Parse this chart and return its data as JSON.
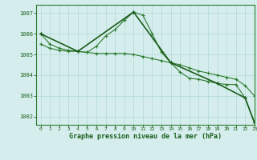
{
  "series1": {
    "x": [
      0,
      1,
      2,
      3,
      4,
      5,
      6,
      7,
      8,
      9,
      10,
      11,
      12,
      13,
      14,
      15,
      16,
      17,
      18,
      19,
      20,
      21,
      22,
      23
    ],
    "y": [
      1006.0,
      1005.5,
      1005.3,
      1005.2,
      1005.15,
      1005.1,
      1005.4,
      1005.9,
      1006.2,
      1006.65,
      1007.05,
      1006.9,
      1006.0,
      1005.1,
      1004.6,
      1004.15,
      1003.85,
      1003.8,
      1003.7,
      1003.6,
      1003.55,
      1003.55,
      1002.9,
      1001.7
    ],
    "color": "#2d7a2d",
    "linewidth": 0.8,
    "marker": "+",
    "markersize": 3.0
  },
  "series2": {
    "x": [
      0,
      1,
      2,
      3,
      4,
      5,
      6,
      7,
      8,
      9,
      10,
      11,
      12,
      13,
      14,
      15,
      16,
      17,
      18,
      19,
      20,
      21,
      22,
      23
    ],
    "y": [
      1005.5,
      1005.3,
      1005.2,
      1005.15,
      1005.15,
      1005.1,
      1005.05,
      1005.05,
      1005.05,
      1005.05,
      1005.0,
      1004.9,
      1004.8,
      1004.7,
      1004.6,
      1004.5,
      1004.35,
      1004.2,
      1004.1,
      1004.0,
      1003.9,
      1003.8,
      1003.5,
      1003.0
    ],
    "color": "#2d7a2d",
    "linewidth": 0.8,
    "marker": "+",
    "markersize": 3.0
  },
  "series3": {
    "x": [
      0,
      4,
      10,
      14,
      19,
      22,
      23
    ],
    "y": [
      1006.0,
      1005.15,
      1007.05,
      1004.6,
      1003.6,
      1002.9,
      1001.7
    ],
    "color": "#1a5c1a",
    "linewidth": 1.2,
    "marker": "+",
    "markersize": 3.5
  },
  "xlim": [
    -0.5,
    23
  ],
  "ylim": [
    1001.6,
    1007.4
  ],
  "yticks": [
    1002,
    1003,
    1004,
    1005,
    1006,
    1007
  ],
  "xticks": [
    0,
    1,
    2,
    3,
    4,
    5,
    6,
    7,
    8,
    9,
    10,
    11,
    12,
    13,
    14,
    15,
    16,
    17,
    18,
    19,
    20,
    21,
    22,
    23
  ],
  "xlabel": "Graphe pression niveau de la mer (hPa)",
  "bg_color": "#d5eeed",
  "grid_color": "#b0d8d4",
  "axis_color": "#2d7a2d",
  "label_color": "#1a5c1a",
  "tick_color": "#1a5c1a"
}
